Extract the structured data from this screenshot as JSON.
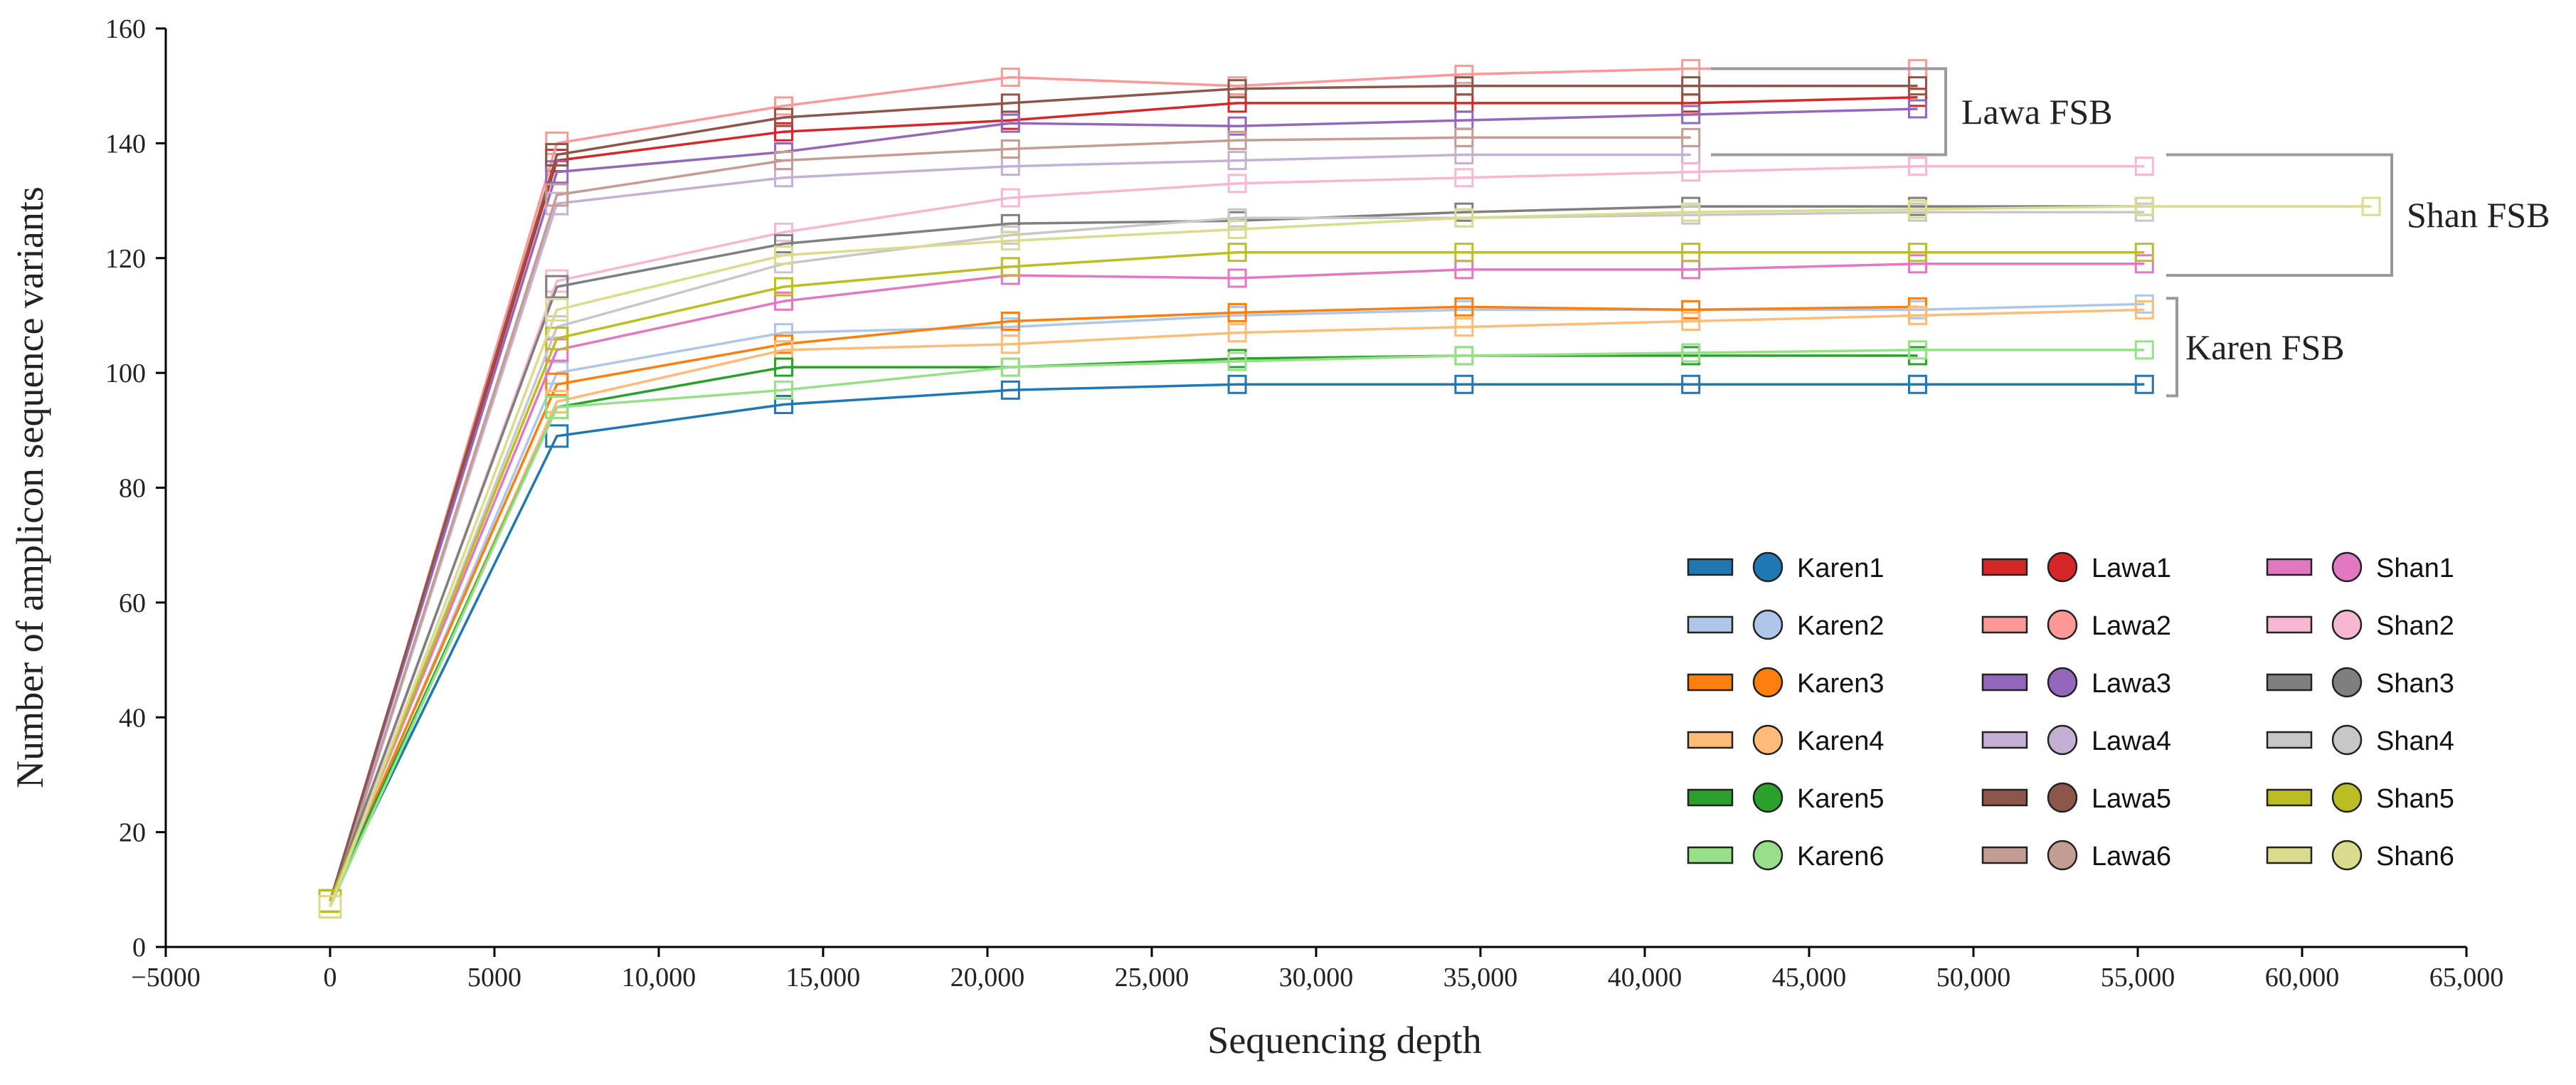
{
  "chart_data": {
    "type": "line",
    "title": "",
    "xlabel": "Sequencing depth",
    "ylabel": "Number of amplicon sequence variants",
    "xlim": [
      -5000,
      65000
    ],
    "ylim": [
      0,
      160
    ],
    "xticks": [
      -5000,
      0,
      5000,
      10000,
      15000,
      20000,
      25000,
      30000,
      35000,
      40000,
      45000,
      50000,
      55000,
      60000,
      65000
    ],
    "xtick_labels": [
      "−5000",
      "0",
      "5000",
      "10,000",
      "15,000",
      "20,000",
      "25,000",
      "30,000",
      "35,000",
      "40,000",
      "45,000",
      "50,000",
      "55,000",
      "60,000",
      "65,000"
    ],
    "yticks": [
      0,
      20,
      40,
      60,
      80,
      100,
      120,
      140,
      160
    ],
    "ytick_labels": [
      "0",
      "20",
      "40",
      "60",
      "80",
      "100",
      "120",
      "140",
      "160"
    ],
    "grid": false,
    "legend_position": "lower-right",
    "series": [
      {
        "name": "Karen1",
        "color": "#1f77b4",
        "x": [
          0,
          6900,
          13800,
          20700,
          27600,
          34500,
          41400,
          48300,
          55200
        ],
        "y": [
          8,
          89,
          94.5,
          97,
          98,
          98,
          98,
          98,
          98
        ]
      },
      {
        "name": "Karen2",
        "color": "#aec7e8",
        "x": [
          0,
          6900,
          13800,
          20700,
          27600,
          34500,
          41400,
          48300,
          55200
        ],
        "y": [
          7,
          100,
          107,
          108,
          110,
          111,
          111,
          111,
          112
        ]
      },
      {
        "name": "Karen3",
        "color": "#ff7f0e",
        "x": [
          0,
          6900,
          13800,
          20700,
          27600,
          34500,
          41400,
          48300
        ],
        "y": [
          8,
          98,
          105,
          109,
          110.5,
          111.5,
          111,
          111.5
        ]
      },
      {
        "name": "Karen4",
        "color": "#ffbb78",
        "x": [
          0,
          6900,
          13800,
          20700,
          27600,
          34500,
          41400,
          48300,
          55200
        ],
        "y": [
          7,
          95,
          104,
          105,
          107,
          108,
          109,
          110,
          111
        ]
      },
      {
        "name": "Karen5",
        "color": "#2ca02c",
        "x": [
          0,
          6900,
          13800,
          20700,
          27600,
          34500,
          41400,
          48300
        ],
        "y": [
          8,
          94,
          101,
          101,
          102.5,
          103,
          103,
          103
        ]
      },
      {
        "name": "Karen6",
        "color": "#98df8a",
        "x": [
          0,
          6900,
          13800,
          20700,
          27600,
          34500,
          41400,
          48300,
          55200
        ],
        "y": [
          7,
          94,
          97,
          101,
          102,
          103,
          103.5,
          104,
          104
        ]
      },
      {
        "name": "Lawa1",
        "color": "#d62728",
        "x": [
          0,
          6900,
          13800,
          20700,
          27600,
          34500,
          41400,
          48300
        ],
        "y": [
          8,
          137,
          142,
          144,
          147,
          147,
          147,
          148
        ]
      },
      {
        "name": "Lawa2",
        "color": "#ff9896",
        "x": [
          0,
          6900,
          13800,
          20700,
          27600,
          34500,
          41400,
          48300
        ],
        "y": [
          7,
          140,
          146.5,
          151.5,
          150,
          152,
          153,
          153
        ]
      },
      {
        "name": "Lawa3",
        "color": "#9467bd",
        "x": [
          0,
          6900,
          13800,
          20700,
          27600,
          34500,
          41400,
          48300
        ],
        "y": [
          8,
          135,
          138.5,
          143.5,
          143,
          144,
          145,
          146
        ]
      },
      {
        "name": "Lawa4",
        "color": "#c5b0d5",
        "x": [
          0,
          6900,
          13800,
          20700,
          27600,
          34500,
          41400
        ],
        "y": [
          7,
          129.5,
          134,
          136,
          137,
          138,
          138
        ]
      },
      {
        "name": "Lawa5",
        "color": "#8c564b",
        "x": [
          0,
          6900,
          13800,
          20700,
          27600,
          34500,
          41400,
          48300
        ],
        "y": [
          8,
          138,
          144.5,
          147,
          149.5,
          150,
          150,
          150
        ]
      },
      {
        "name": "Lawa6",
        "color": "#c49c94",
        "x": [
          0,
          6900,
          13800,
          20700,
          27600,
          34500,
          41400
        ],
        "y": [
          7,
          131,
          137,
          139,
          140.5,
          141,
          141
        ]
      },
      {
        "name": "Shan1",
        "color": "#e377c2",
        "x": [
          0,
          6900,
          13800,
          20700,
          27600,
          34500,
          41400,
          48300,
          55200
        ],
        "y": [
          8,
          104,
          112.5,
          117,
          116.5,
          118,
          118,
          119,
          119
        ]
      },
      {
        "name": "Shan2",
        "color": "#f7b6d2",
        "x": [
          0,
          6900,
          13800,
          20700,
          27600,
          34500,
          41400,
          48300,
          55200
        ],
        "y": [
          7,
          116,
          124.5,
          130.5,
          133,
          134,
          135,
          136,
          136
        ]
      },
      {
        "name": "Shan3",
        "color": "#7f7f7f",
        "x": [
          0,
          6900,
          13800,
          20700,
          27600,
          34500,
          41400,
          48300,
          55200
        ],
        "y": [
          8,
          115,
          122.5,
          126,
          126.5,
          128,
          129,
          129,
          129
        ]
      },
      {
        "name": "Shan4",
        "color": "#c7c7c7",
        "x": [
          0,
          6900,
          13800,
          20700,
          27600,
          34500,
          41400,
          48300,
          55200
        ],
        "y": [
          7,
          108,
          119,
          124,
          127,
          127,
          127.5,
          128,
          128
        ]
      },
      {
        "name": "Shan5",
        "color": "#bcbd22",
        "x": [
          0,
          6900,
          13800,
          20700,
          27600,
          34500,
          41400,
          48300,
          55200
        ],
        "y": [
          8,
          106,
          115,
          118.5,
          121,
          121,
          121,
          121,
          121
        ]
      },
      {
        "name": "Shan6",
        "color": "#dbdb8d",
        "x": [
          0,
          6900,
          13800,
          20700,
          27600,
          34500,
          41400,
          48300,
          55200,
          62100
        ],
        "y": [
          7,
          111,
          120.5,
          123,
          125,
          127,
          128,
          128.5,
          129,
          129
        ]
      }
    ],
    "annotations": [
      {
        "name": "lawa",
        "text": "Lawa FSB",
        "range": [
          138,
          153
        ]
      },
      {
        "name": "shan",
        "text": "Shan FSB",
        "range": [
          117,
          138
        ]
      },
      {
        "name": "karen",
        "text": "Karen FSB",
        "range": [
          96,
          113
        ]
      }
    ]
  }
}
